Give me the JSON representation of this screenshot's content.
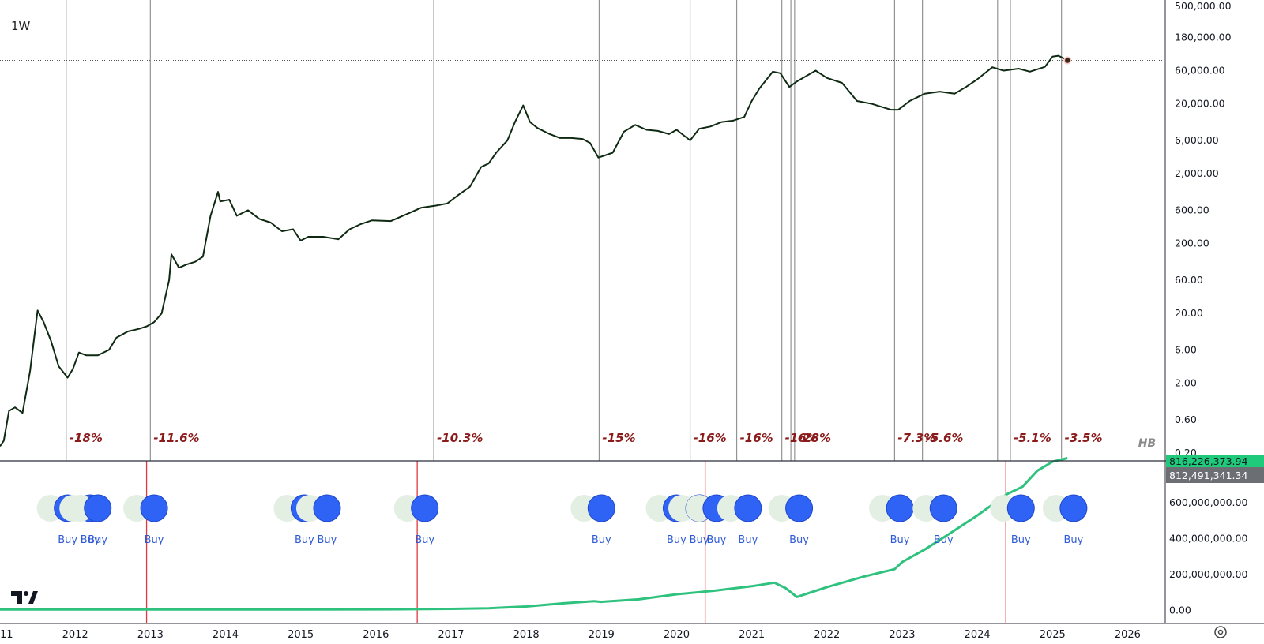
{
  "interval": "1W",
  "watermark": "HB",
  "colors": {
    "price_line": "#0f2a12",
    "vertical_line": "#6f6f6f",
    "red_line": "#e0393e",
    "drop_label": "#8b1a1a",
    "buy_marker": "#2f63f5",
    "buy_marker_ghost": "#e4efe4",
    "buy_marker_green": "#1fe07c",
    "equity_line": "#2ec27e",
    "equity_down": "#e04a4a",
    "price_badge": "#1fcb7a",
    "value_badge": "#6b6e73"
  },
  "chart_data": [
    {
      "type": "line",
      "scale": "log",
      "y_axis_ticks": [
        "500,000.00",
        "180,000.00",
        "60,000.00",
        "20,000.00",
        "6,000.00",
        "2,000.00",
        "600.00",
        "200.00",
        "60.00",
        "20.00",
        "6.00",
        "2.00",
        "0.60",
        "0.20"
      ],
      "y_axis_values": [
        500000,
        180000,
        60000,
        20000,
        6000,
        2000,
        600,
        200,
        60,
        20,
        6,
        2,
        0.6,
        0.2
      ],
      "ylim": [
        0.2,
        500000
      ],
      "x_axis_ticks": [
        "2011",
        "2012",
        "2013",
        "2014",
        "2015",
        "2016",
        "2017",
        "2018",
        "2019",
        "2020",
        "2021",
        "2022",
        "2023",
        "2024",
        "2025",
        "2026"
      ],
      "xlim": [
        2011.0,
        2026.5
      ],
      "series": [
        {
          "x": [
            2011.0,
            2011.05,
            2011.12,
            2011.2,
            2011.3,
            2011.4,
            2011.46,
            2011.5,
            2011.58,
            2011.68,
            2011.78,
            2011.9,
            2011.97,
            2012.05,
            2012.15,
            2012.3,
            2012.45,
            2012.55,
            2012.7,
            2012.85,
            2012.95,
            2013.05,
            2013.15,
            2013.25,
            2013.28,
            2013.38,
            2013.48,
            2013.6,
            2013.7,
            2013.8,
            2013.9,
            2013.93,
            2014.05,
            2014.15,
            2014.3,
            2014.45,
            2014.6,
            2014.75,
            2014.9,
            2015.0,
            2015.1,
            2015.3,
            2015.5,
            2015.65,
            2015.8,
            2015.95,
            2016.2,
            2016.45,
            2016.6,
            2016.8,
            2016.95,
            2017.1,
            2017.25,
            2017.4,
            2017.5,
            2017.6,
            2017.75,
            2017.85,
            2017.96,
            2018.05,
            2018.15,
            2018.3,
            2018.45,
            2018.6,
            2018.75,
            2018.85,
            2018.96,
            2019.15,
            2019.3,
            2019.45,
            2019.6,
            2019.75,
            2019.9,
            2020.0,
            2020.18,
            2020.3,
            2020.45,
            2020.6,
            2020.75,
            2020.9,
            2021.0,
            2021.1,
            2021.28,
            2021.38,
            2021.5,
            2021.6,
            2021.85,
            2022.0,
            2022.2,
            2022.4,
            2022.6,
            2022.85,
            2022.95,
            2023.1,
            2023.3,
            2023.5,
            2023.7,
            2023.85,
            2024.0,
            2024.2,
            2024.35,
            2024.55,
            2024.7,
            2024.9,
            2025.0,
            2025.08,
            2025.2
          ],
          "values": [
            0.25,
            0.3,
            0.8,
            0.9,
            0.75,
            3,
            10,
            22,
            15,
            8,
            3.5,
            2.4,
            3.2,
            5.5,
            5.0,
            5.0,
            6.0,
            9,
            11,
            12,
            13,
            15,
            20,
            60,
            140,
            90,
            100,
            110,
            130,
            500,
            1100,
            800,
            850,
            500,
            600,
            450,
            400,
            300,
            320,
            220,
            250,
            250,
            230,
            320,
            380,
            430,
            420,
            550,
            650,
            700,
            750,
            1000,
            1300,
            2500,
            2800,
            4000,
            6000,
            11000,
            19000,
            11000,
            9000,
            7500,
            6500,
            6500,
            6300,
            5500,
            3400,
            4000,
            8000,
            10000,
            8500,
            8200,
            7400,
            8500,
            6000,
            8800,
            9500,
            11000,
            11500,
            13000,
            22000,
            33000,
            58000,
            55000,
            35000,
            42000,
            60000,
            47000,
            40000,
            22000,
            20000,
            16500,
            16500,
            22000,
            28000,
            30000,
            28000,
            35000,
            45000,
            67000,
            60000,
            64000,
            58000,
            68000,
            95000,
            98000,
            84000
          ]
        }
      ],
      "vertical_markers": [
        2011.88,
        2013.0,
        2016.77,
        2018.97,
        2020.18,
        2020.8,
        2021.4,
        2021.52,
        2021.57,
        2022.9,
        2023.27,
        2024.27,
        2024.44,
        2025.12
      ],
      "drop_labels": [
        {
          "x": 2011.88,
          "text": "-18%"
        },
        {
          "x": 2013.0,
          "text": "-11.6%"
        },
        {
          "x": 2016.77,
          "text": "-10.3%"
        },
        {
          "x": 2018.97,
          "text": "-15%"
        },
        {
          "x": 2020.18,
          "text": "-16%"
        },
        {
          "x": 2020.8,
          "text": "-16%"
        },
        {
          "x": 2021.4,
          "text": "-16%"
        },
        {
          "x": 2021.57,
          "text": "-28%"
        },
        {
          "x": 2022.9,
          "text": "-7.3%"
        },
        {
          "x": 2023.27,
          "text": "-5.6%"
        },
        {
          "x": 2024.44,
          "text": "-5.1%"
        },
        {
          "x": 2025.12,
          "text": "-3.5%"
        }
      ]
    },
    {
      "type": "line",
      "scale": "linear",
      "y_axis_ticks": [
        "0.00",
        "200,000,000.00",
        "400,000,000.00",
        "600,000,000.00"
      ],
      "y_axis_values": [
        0,
        200000000,
        400000000,
        600000000
      ],
      "ylim": [
        -20000000,
        830000000
      ],
      "badges": [
        "816,226,373.94",
        "812,491,341.34"
      ],
      "red_markers": [
        2012.95,
        2016.55,
        2020.38,
        2024.38
      ],
      "series": [
        {
          "name": "",
          "x": [
            2011.0,
            2012.0,
            2013.0,
            2014.0,
            2015.0,
            2016.0,
            2016.5,
            2017.0,
            2017.5,
            2018.0,
            2018.5,
            2018.9,
            2019.0,
            2019.5,
            2020.0,
            2020.5,
            2021.0,
            2021.3,
            2021.45,
            2021.6,
            2022.0,
            2022.5,
            2022.9,
            2023.0,
            2023.3,
            2023.6,
            2024.0,
            2024.4,
            2024.6,
            2024.8,
            2025.0,
            2025.2
          ],
          "values": [
            5000000,
            5000000,
            5000000,
            5000000,
            5500000,
            6000000,
            7000000,
            8500000,
            12000000,
            22000000,
            40000000,
            52000000,
            48000000,
            62000000,
            90000000,
            110000000,
            135000000,
            155000000,
            125000000,
            75000000,
            130000000,
            190000000,
            230000000,
            270000000,
            340000000,
            420000000,
            530000000,
            650000000,
            690000000,
            780000000,
            830000000,
            850000000
          ]
        }
      ],
      "buy_markers": [
        {
          "x": 2011.9,
          "label": "Buy"
        },
        {
          "x": 2012.2,
          "label": "Buy"
        },
        {
          "x": 2012.3,
          "label": "Buy"
        },
        {
          "x": 2013.05,
          "label": "Buy"
        },
        {
          "x": 2015.05,
          "label": "Buy"
        },
        {
          "x": 2015.35,
          "label": "Buy"
        },
        {
          "x": 2016.65,
          "label": "Buy"
        },
        {
          "x": 2019.0,
          "label": "Buy"
        },
        {
          "x": 2020.0,
          "label": "Buy"
        },
        {
          "x": 2020.3,
          "label": "Buy"
        },
        {
          "x": 2020.53,
          "label": "Buy"
        },
        {
          "x": 2020.95,
          "label": "Buy"
        },
        {
          "x": 2021.63,
          "label": "Buy"
        },
        {
          "x": 2022.97,
          "label": "Buy"
        },
        {
          "x": 2023.55,
          "label": "Buy"
        },
        {
          "x": 2024.58,
          "label": "Buy"
        },
        {
          "x": 2025.28,
          "label": "Buy"
        }
      ]
    }
  ]
}
